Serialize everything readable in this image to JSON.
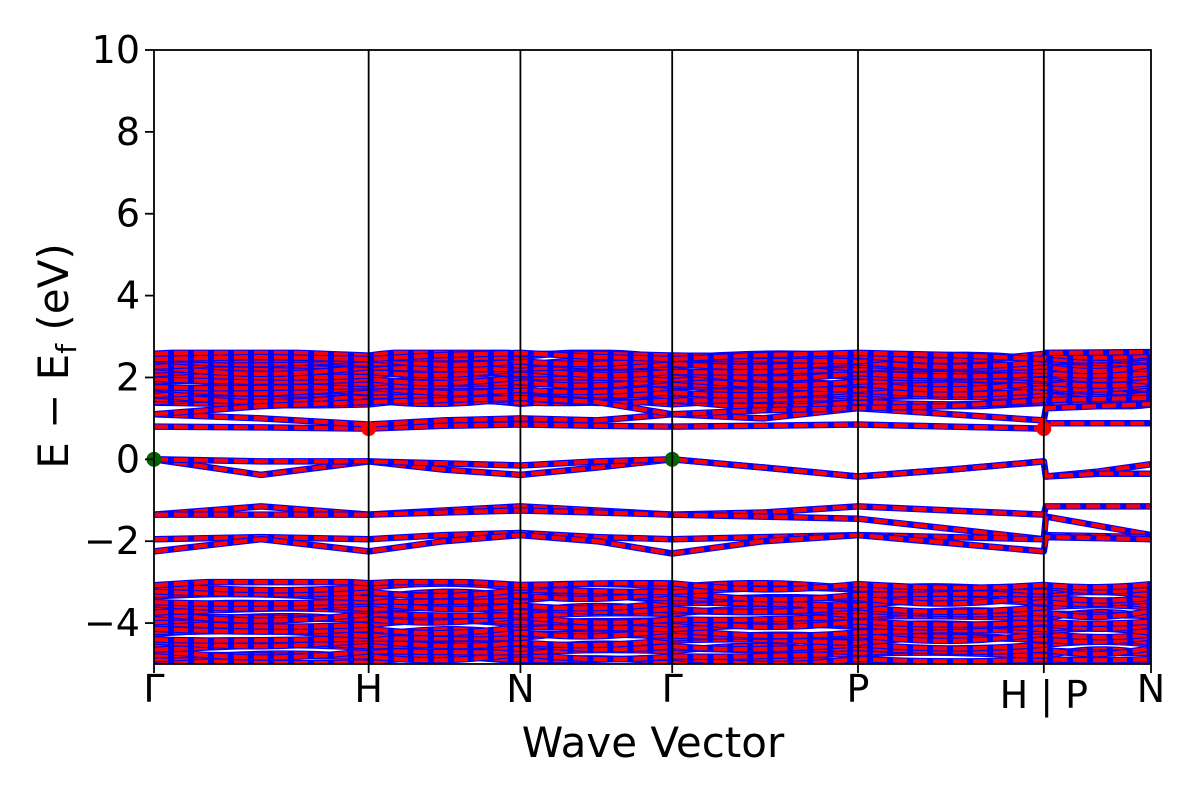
{
  "chart_data": {
    "type": "line",
    "xlabel": "Wave Vector",
    "ylabel_main": "E − E",
    "ylabel_sub": "f",
    "ylabel_unit": " (eV)",
    "ylim": [
      -5,
      10
    ],
    "yticks": [
      10,
      8,
      6,
      4,
      2,
      0,
      -2,
      -4
    ],
    "ytick_labels": [
      "10",
      "8",
      "6",
      "4",
      "2",
      "0",
      "−2",
      "−4"
    ],
    "xlim": [
      0,
      6.707
    ],
    "kpoints": [
      {
        "label": "Γ",
        "x": 0
      },
      {
        "label": "H",
        "x": 1.444
      },
      {
        "label": "N",
        "x": 2.465
      },
      {
        "label": "Γ",
        "x": 3.486
      },
      {
        "label": "P",
        "x": 4.736
      },
      {
        "label": "H | P",
        "x": 5.986
      },
      {
        "label": "N",
        "x": 6.707
      }
    ],
    "colors": {
      "spin_up": "#0000ff",
      "spin_down": "#ff0000",
      "vbm": "#006400",
      "cbm": "#ff0000",
      "axis": "#000000"
    },
    "band_groups": [
      {
        "name": "deep_valence",
        "emin": -4.95,
        "emax": -3.05,
        "count": 24
      },
      {
        "name": "conduction_manifold",
        "emin": 1.35,
        "emax": 2.55,
        "count": 20
      }
    ],
    "bands": [
      {
        "x": [
          0,
          0.72,
          1.444,
          1.95,
          2.465,
          2.98,
          3.486,
          4.1,
          4.736,
          5.36,
          5.986,
          6.0,
          6.35,
          6.707
        ],
        "y": [
          0.0,
          -0.38,
          -0.05,
          -0.25,
          -0.38,
          -0.2,
          0.0,
          -0.2,
          -0.42,
          -0.25,
          -0.05,
          -0.42,
          -0.3,
          -0.12
        ]
      },
      {
        "x": [
          0,
          0.72,
          1.444,
          1.95,
          2.465,
          2.98,
          3.486,
          4.1,
          4.736,
          5.36,
          5.986,
          6.0,
          6.35,
          6.707
        ],
        "y": [
          0.0,
          -0.05,
          -0.05,
          -0.1,
          -0.15,
          -0.05,
          0.0,
          -0.2,
          -0.42,
          -0.25,
          -0.05,
          -0.42,
          -0.35,
          -0.35
        ]
      },
      {
        "x": [
          0,
          0.72,
          1.444,
          1.95,
          2.465,
          2.98,
          3.486,
          4.1,
          4.736,
          5.36,
          5.986,
          6.0,
          6.707
        ],
        "y": [
          0.8,
          0.78,
          0.75,
          0.82,
          0.85,
          0.82,
          0.8,
          0.82,
          0.85,
          0.8,
          0.75,
          0.88,
          0.88
        ]
      },
      {
        "x": [
          0,
          0.72,
          1.444,
          1.95,
          2.465,
          2.98,
          3.486,
          4.1,
          4.736,
          5.36,
          5.986,
          6.0,
          6.707
        ],
        "y": [
          1.1,
          1.0,
          0.85,
          0.95,
          1.0,
          0.95,
          1.1,
          1.0,
          1.25,
          1.1,
          0.95,
          1.25,
          1.35
        ]
      },
      {
        "x": [
          0,
          0.72,
          1.444,
          1.95,
          2.465,
          2.98,
          3.486,
          4.1,
          4.736,
          5.36,
          5.986,
          6.0,
          6.707
        ],
        "y": [
          1.1,
          1.3,
          1.4,
          1.45,
          1.5,
          1.4,
          1.1,
          1.2,
          1.25,
          1.3,
          1.45,
          1.45,
          1.5
        ]
      },
      {
        "x": [
          0,
          0.72,
          1.444,
          1.95,
          2.465,
          2.98,
          3.486,
          4.1,
          4.736,
          5.36,
          5.986,
          6.0,
          6.707
        ],
        "y": [
          -1.35,
          -1.15,
          -1.35,
          -1.25,
          -1.15,
          -1.25,
          -1.35,
          -1.3,
          -1.15,
          -1.25,
          -1.35,
          -1.15,
          -1.15
        ]
      },
      {
        "x": [
          0,
          0.72,
          1.444,
          1.95,
          2.465,
          2.98,
          3.486,
          4.1,
          4.736,
          5.36,
          5.986,
          6.0,
          6.707
        ],
        "y": [
          -1.35,
          -1.35,
          -1.35,
          -1.3,
          -1.25,
          -1.3,
          -1.35,
          -1.4,
          -1.45,
          -1.7,
          -1.95,
          -1.4,
          -1.85
        ]
      },
      {
        "x": [
          0,
          0.72,
          1.444,
          1.95,
          2.465,
          2.98,
          3.486,
          4.1,
          4.736,
          5.36,
          5.986,
          6.0,
          6.707
        ],
        "y": [
          -1.95,
          -1.9,
          -1.95,
          -1.85,
          -1.8,
          -1.9,
          -1.95,
          -1.9,
          -1.85,
          -1.9,
          -1.95,
          -1.85,
          -1.9
        ]
      },
      {
        "x": [
          0,
          0.72,
          1.444,
          1.95,
          2.465,
          2.98,
          3.486,
          4.1,
          4.736,
          5.36,
          5.986,
          6.0,
          6.707
        ],
        "y": [
          -2.25,
          -1.95,
          -2.25,
          -2.0,
          -1.85,
          -2.0,
          -2.3,
          -2.0,
          -1.85,
          -2.05,
          -2.25,
          -1.9,
          -1.95
        ]
      },
      {
        "x": [
          0,
          0.72,
          1.444,
          1.95,
          2.465,
          2.98,
          3.486,
          4.1,
          4.736,
          5.36,
          5.986,
          6.0,
          6.707
        ],
        "y": [
          2.45,
          2.5,
          2.45,
          2.55,
          2.6,
          2.5,
          2.45,
          2.55,
          2.6,
          2.55,
          2.45,
          2.6,
          2.62
        ]
      }
    ],
    "markers": [
      {
        "name": "vbm",
        "x": 0,
        "y": 0.0
      },
      {
        "name": "vbm",
        "x": 3.486,
        "y": 0.0
      },
      {
        "name": "cbm",
        "x": 1.444,
        "y": 0.75
      },
      {
        "name": "cbm",
        "x": 5.986,
        "y": 0.75
      }
    ]
  }
}
